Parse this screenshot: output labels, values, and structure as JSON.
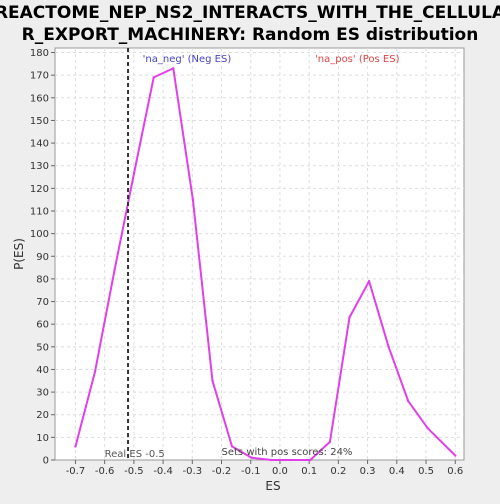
{
  "chart_data": {
    "type": "line",
    "title_lines": [
      "REACTOME_NEP_NS2_INTERACTS_WITH_THE_CELLULA",
      "R_EXPORT_MACHINERY: Random ES distribution"
    ],
    "xlabel": "ES",
    "ylabel": "P(ES)",
    "xlim": [
      -0.77,
      0.63
    ],
    "ylim": [
      0,
      182
    ],
    "x_ticks": [
      -0.7,
      -0.6,
      -0.5,
      -0.4,
      -0.3,
      -0.2,
      -0.1,
      0.0,
      0.1,
      0.2,
      0.3,
      0.4,
      0.5,
      0.6
    ],
    "x_tick_labels": [
      "-0.7",
      "-0.6",
      "-0.5",
      "-0.4",
      "-0.3",
      "-0.2",
      "-0.1",
      "0.0",
      "0.1",
      "0.2",
      "0.3",
      "0.4",
      "0.5",
      "0.6"
    ],
    "y_ticks": [
      0,
      10,
      20,
      30,
      40,
      50,
      60,
      70,
      80,
      90,
      100,
      110,
      120,
      130,
      140,
      150,
      160,
      170,
      180
    ],
    "grid": true,
    "series": [
      {
        "color": "#e040e8",
        "x": [
          -0.7,
          -0.633,
          -0.566,
          -0.499,
          -0.432,
          -0.365,
          -0.298,
          -0.231,
          -0.164,
          -0.097,
          -0.03,
          0.037,
          0.104,
          0.171,
          0.238,
          0.305,
          0.372,
          0.439,
          0.506,
          0.6
        ],
        "values": [
          6,
          39,
          84,
          127,
          169,
          173,
          115,
          35,
          6,
          1,
          0,
          0,
          0,
          8,
          63,
          79,
          50,
          26,
          14,
          2
        ]
      }
    ],
    "real_es": -0.52,
    "annotations": {
      "neg_label": "'na_neg' (Neg ES)",
      "neg_color": "#4444cc",
      "pos_label": "'na_pos' (Pos ES)",
      "pos_color": "#dd4444",
      "real_es_label": "Real ES -0.5",
      "pos_scores_label": "Sets with pos scores: 24%"
    }
  }
}
